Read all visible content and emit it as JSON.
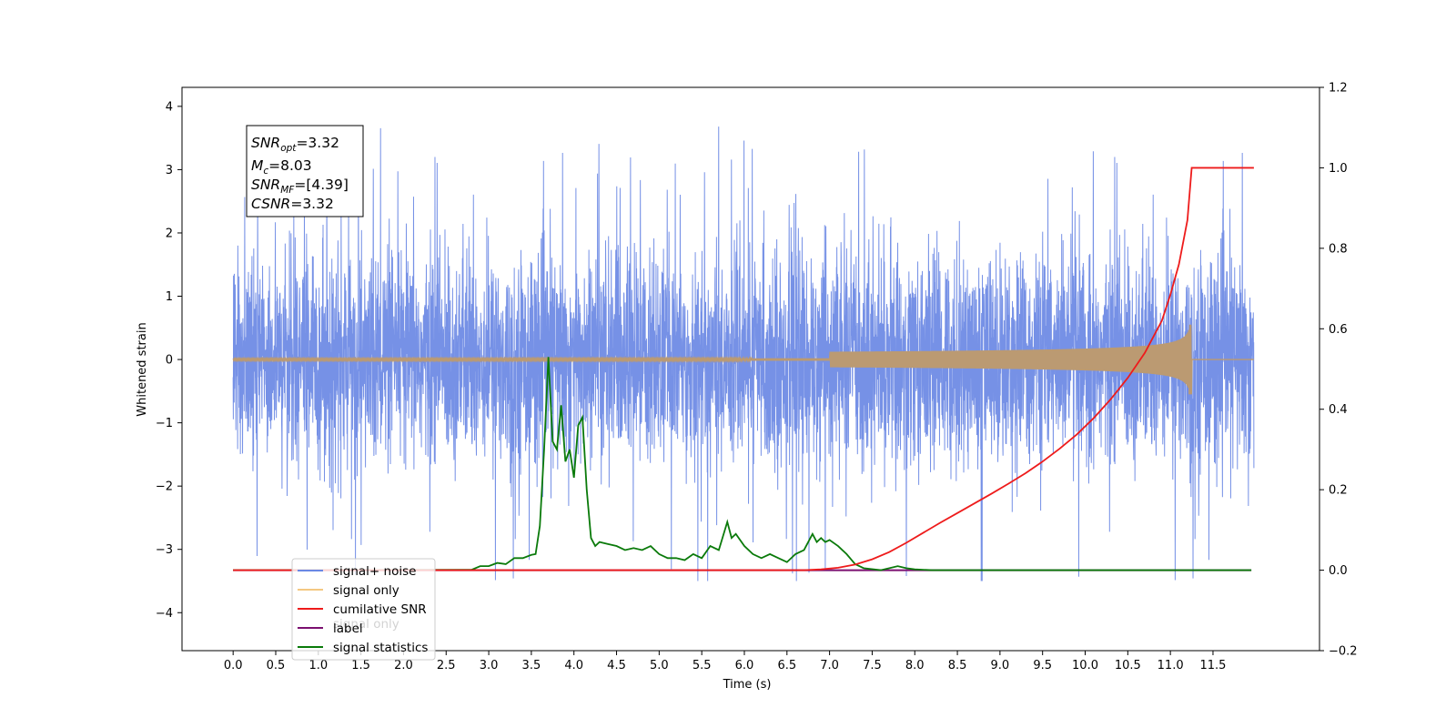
{
  "chart_data": {
    "type": "line",
    "xlabel": "Time (s)",
    "ylabel": "Whitened strain",
    "xlim": [
      -0.6,
      12.75
    ],
    "ylim": [
      -4.6,
      4.3
    ],
    "y2lim": [
      -0.2,
      1.2
    ],
    "grid": false,
    "legend_position": "lower-left",
    "x_ticks": [
      "0.0",
      "0.5",
      "1.0",
      "1.5",
      "2.0",
      "2.5",
      "3.0",
      "3.5",
      "4.0",
      "4.5",
      "5.0",
      "5.5",
      "6.0",
      "6.5",
      "7.0",
      "7.5",
      "8.0",
      "8.5",
      "9.0",
      "9.5",
      "10.0",
      "10.5",
      "11.0",
      "11.5"
    ],
    "y_ticks": [
      "4",
      "3",
      "2",
      "1",
      "0",
      "−1",
      "−2",
      "−3",
      "−4"
    ],
    "y2_ticks": [
      "1.2",
      "1.0",
      "0.8",
      "0.6",
      "0.4",
      "0.2",
      "0.0",
      "−0.2"
    ],
    "annotation": {
      "snr_opt_base": "SNR",
      "snr_opt_sub": "opt",
      "snr_opt_value": "=3.32",
      "mc_base": "M",
      "mc_sub": "c",
      "mc_value": "=8.03",
      "snr_mf_base": "SNR",
      "snr_mf_sub": "MF",
      "snr_mf_value": "=[4.39]",
      "csnr_base": "CSNR",
      "csnr_value": "=3.32"
    },
    "colors": {
      "noise": "#6a88e4",
      "signal": "#f0b04c",
      "signal_drawn": "#bb9a72",
      "snr": "#ee1b1b",
      "label": "#7b1070",
      "stats": "#0a7a0a"
    },
    "series": [
      {
        "name": "signal+ noise",
        "axis": "left",
        "description_free": true,
        "t_start": 0.0,
        "t_end": 11.98,
        "std": 0.82,
        "min": -3.5,
        "max": 3.9
      },
      {
        "name": "signal only",
        "axis": "left",
        "t_start": 0.0,
        "t_end": 11.98,
        "amplitude_at_merger": 0.55,
        "merger_time": 11.25
      },
      {
        "name": "cumilative SNR",
        "axis": "right",
        "x": [
          0.0,
          6.7,
          6.9,
          7.1,
          7.3,
          7.5,
          7.7,
          7.9,
          8.1,
          8.3,
          8.5,
          8.7,
          8.9,
          9.1,
          9.3,
          9.5,
          9.7,
          9.9,
          10.1,
          10.3,
          10.5,
          10.7,
          10.9,
          11.0,
          11.1,
          11.2,
          11.25,
          11.3,
          11.98
        ],
        "y": [
          0.0,
          0.0,
          0.002,
          0.006,
          0.014,
          0.027,
          0.045,
          0.068,
          0.093,
          0.118,
          0.142,
          0.166,
          0.19,
          0.215,
          0.241,
          0.27,
          0.302,
          0.337,
          0.378,
          0.425,
          0.478,
          0.54,
          0.62,
          0.685,
          0.76,
          0.87,
          1.0,
          1.0,
          1.0
        ]
      },
      {
        "name": "label",
        "axis": "right",
        "x": [
          0.0,
          11.95
        ],
        "y": [
          0.0,
          0.0
        ]
      },
      {
        "name": "signal statistics",
        "axis": "right",
        "x": [
          0.0,
          2.8,
          2.9,
          3.0,
          3.1,
          3.2,
          3.3,
          3.4,
          3.5,
          3.55,
          3.6,
          3.65,
          3.7,
          3.75,
          3.8,
          3.85,
          3.9,
          3.95,
          4.0,
          4.05,
          4.1,
          4.15,
          4.2,
          4.25,
          4.3,
          4.4,
          4.5,
          4.6,
          4.7,
          4.8,
          4.9,
          5.0,
          5.1,
          5.2,
          5.3,
          5.4,
          5.5,
          5.6,
          5.7,
          5.8,
          5.85,
          5.9,
          6.0,
          6.1,
          6.2,
          6.3,
          6.4,
          6.5,
          6.6,
          6.7,
          6.8,
          6.85,
          6.9,
          6.95,
          7.0,
          7.1,
          7.2,
          7.3,
          7.4,
          7.6,
          7.8,
          7.9,
          8.0,
          8.2,
          8.5,
          11.95
        ],
        "y": [
          0.0,
          0.001,
          0.01,
          0.01,
          0.018,
          0.015,
          0.03,
          0.03,
          0.038,
          0.04,
          0.11,
          0.3,
          0.53,
          0.32,
          0.3,
          0.41,
          0.27,
          0.3,
          0.23,
          0.36,
          0.38,
          0.2,
          0.08,
          0.06,
          0.07,
          0.065,
          0.06,
          0.05,
          0.055,
          0.05,
          0.06,
          0.04,
          0.03,
          0.03,
          0.025,
          0.04,
          0.03,
          0.06,
          0.05,
          0.12,
          0.08,
          0.09,
          0.06,
          0.04,
          0.03,
          0.04,
          0.03,
          0.02,
          0.04,
          0.05,
          0.09,
          0.07,
          0.08,
          0.07,
          0.075,
          0.06,
          0.04,
          0.015,
          0.005,
          0.0,
          0.01,
          0.005,
          0.002,
          0.0,
          0.0,
          0.0
        ]
      }
    ],
    "legend": [
      "signal+ noise",
      "signal only",
      "cumilative SNR",
      "label",
      "signal statistics"
    ],
    "hidden_label_text": "signal only"
  }
}
